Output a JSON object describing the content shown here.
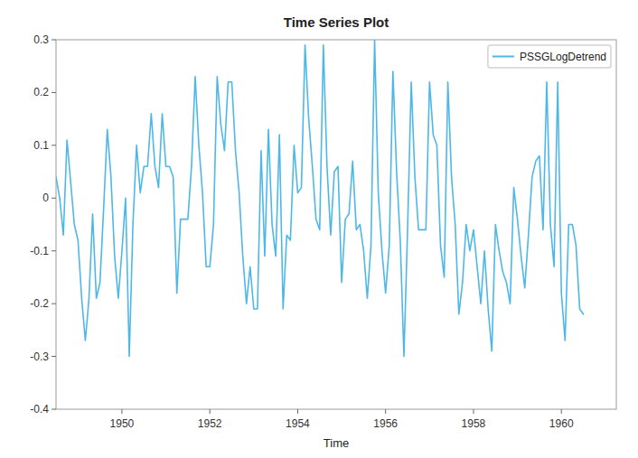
{
  "chart_data": {
    "type": "line",
    "title": "Time Series Plot",
    "xlabel": "Time",
    "x": [
      1948.5,
      1948.5833333333333,
      1948.6666666666667,
      1948.75,
      1948.8333333333333,
      1948.9166666666667,
      1949,
      1949.0833333333333,
      1949.1666666666667,
      1949.25,
      1949.3333333333333,
      1949.4166666666667,
      1949.5,
      1949.5833333333333,
      1949.6666666666667,
      1949.75,
      1949.8333333333333,
      1949.9166666666667,
      1950,
      1950.0833333333333,
      1950.1666666666667,
      1950.25,
      1950.3333333333333,
      1950.4166666666667,
      1950.5,
      1950.5833333333333,
      1950.6666666666667,
      1950.75,
      1950.8333333333333,
      1950.9166666666667,
      1951,
      1951.0833333333333,
      1951.1666666666667,
      1951.25,
      1951.3333333333333,
      1951.4166666666667,
      1951.5,
      1951.5833333333333,
      1951.6666666666667,
      1951.75,
      1951.8333333333333,
      1951.9166666666667,
      1952,
      1952.0833333333333,
      1952.1666666666667,
      1952.25,
      1952.3333333333333,
      1952.4166666666667,
      1952.5,
      1952.5833333333333,
      1952.6666666666667,
      1952.75,
      1952.8333333333333,
      1952.9166666666667,
      1953,
      1953.0833333333333,
      1953.1666666666667,
      1953.25,
      1953.3333333333333,
      1953.4166666666667,
      1953.5,
      1953.5833333333333,
      1953.6666666666667,
      1953.75,
      1953.8333333333333,
      1953.9166666666667,
      1954,
      1954.0833333333333,
      1954.1666666666667,
      1954.25,
      1954.3333333333333,
      1954.4166666666667,
      1954.5,
      1954.5833333333333,
      1954.6666666666667,
      1954.75,
      1954.8333333333333,
      1954.9166666666667,
      1955,
      1955.0833333333333,
      1955.1666666666667,
      1955.25,
      1955.3333333333333,
      1955.4166666666667,
      1955.5,
      1955.5833333333333,
      1955.6666666666667,
      1955.75,
      1955.8333333333333,
      1955.9166666666667,
      1956,
      1956.0833333333333,
      1956.1666666666667,
      1956.25,
      1956.3333333333333,
      1956.4166666666667,
      1956.5,
      1956.5833333333333,
      1956.6666666666667,
      1956.75,
      1956.8333333333333,
      1956.9166666666667,
      1957,
      1957.0833333333333,
      1957.1666666666667,
      1957.25,
      1957.3333333333333,
      1957.4166666666667,
      1957.5,
      1957.5833333333333,
      1957.6666666666667,
      1957.75,
      1957.8333333333333,
      1957.9166666666667,
      1958,
      1958.0833333333333,
      1958.1666666666667,
      1958.25,
      1958.3333333333333,
      1958.4166666666667,
      1958.5,
      1958.5833333333333,
      1958.6666666666667,
      1958.75,
      1958.8333333333333,
      1958.9166666666667,
      1959,
      1959.0833333333333,
      1959.1666666666667,
      1959.25,
      1959.3333333333333,
      1959.4166666666667,
      1959.5,
      1959.5833333333333,
      1959.6666666666667,
      1959.75,
      1959.8333333333333,
      1959.9166666666667,
      1960,
      1960.0833333333333,
      1960.1666666666667,
      1960.25,
      1960.3333333333333,
      1960.4166666666667,
      1960.5
    ],
    "series": [
      {
        "name": "PSSGLogDetrend",
        "color": "#4db8e8",
        "values": [
          0.04,
          0.0,
          -0.07,
          0.11,
          0.03,
          -0.05,
          -0.08,
          -0.19,
          -0.27,
          -0.19,
          -0.03,
          -0.19,
          -0.16,
          -0.02,
          0.13,
          0.04,
          -0.11,
          -0.19,
          -0.1,
          0.0,
          -0.3,
          -0.05,
          0.1,
          0.01,
          0.06,
          0.06,
          0.16,
          0.06,
          0.02,
          0.16,
          0.06,
          0.06,
          0.04,
          -0.18,
          -0.04,
          -0.04,
          -0.04,
          0.06,
          0.23,
          0.1,
          0.01,
          -0.13,
          -0.13,
          -0.05,
          0.23,
          0.14,
          0.09,
          0.22,
          0.22,
          0.09,
          0.01,
          -0.11,
          -0.2,
          -0.13,
          -0.21,
          -0.21,
          0.09,
          -0.11,
          0.13,
          -0.05,
          -0.11,
          0.12,
          -0.21,
          -0.07,
          -0.08,
          0.1,
          0.01,
          0.02,
          0.29,
          0.15,
          0.06,
          -0.04,
          -0.06,
          0.29,
          0.06,
          -0.07,
          0.05,
          0.06,
          -0.16,
          -0.04,
          -0.03,
          0.07,
          -0.06,
          -0.05,
          -0.1,
          -0.19,
          -0.09,
          0.3,
          0.01,
          -0.1,
          -0.18,
          -0.09,
          0.24,
          0.05,
          -0.08,
          -0.3,
          -0.06,
          0.22,
          0.04,
          -0.06,
          -0.06,
          -0.06,
          0.22,
          0.12,
          0.1,
          -0.09,
          -0.15,
          0.22,
          0.04,
          -0.05,
          -0.22,
          -0.16,
          -0.05,
          -0.1,
          -0.06,
          -0.13,
          -0.2,
          -0.1,
          -0.21,
          -0.29,
          -0.05,
          -0.1,
          -0.14,
          -0.16,
          -0.2,
          0.02,
          -0.04,
          -0.11,
          -0.17,
          -0.07,
          0.04,
          0.07,
          0.08,
          -0.06,
          0.22,
          -0.05,
          -0.13,
          0.22,
          -0.18,
          -0.27,
          -0.05,
          -0.05,
          -0.09,
          -0.21,
          -0.22
        ]
      }
    ],
    "xlim": [
      1948.5,
      1961.25
    ],
    "ylim": [
      -0.4,
      0.3
    ],
    "xticks": [
      1950,
      1952,
      1954,
      1956,
      1958,
      1960
    ],
    "yticks": [
      -0.4,
      -0.3,
      -0.2,
      -0.1,
      0.0,
      0.1,
      0.2,
      0.3
    ],
    "grid": false,
    "legend": "upper right"
  }
}
